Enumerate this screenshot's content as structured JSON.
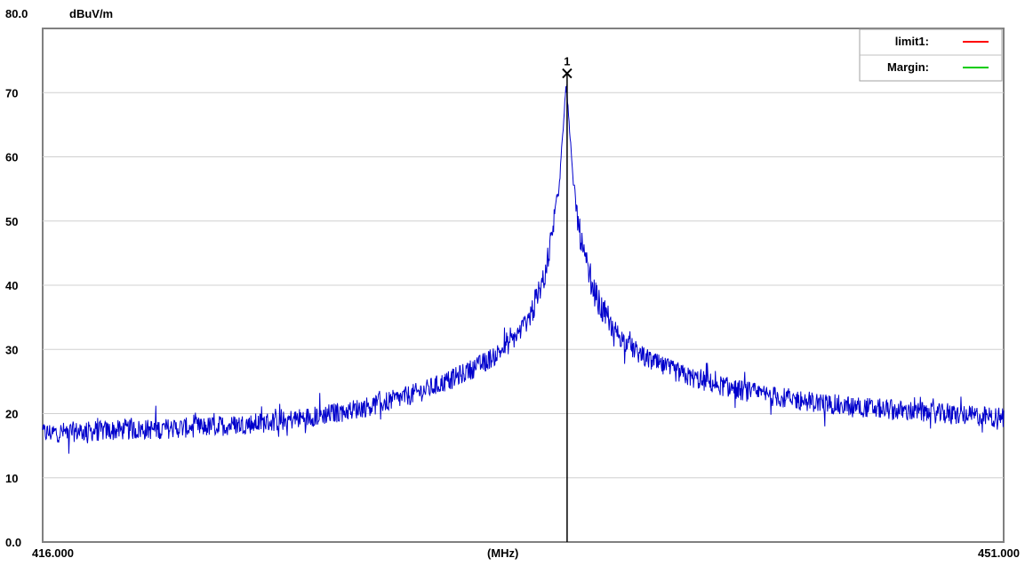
{
  "chart_data": {
    "type": "line",
    "ylabel": "dBuV/m",
    "xlabel": "(MHz)",
    "xlim": [
      416.0,
      451.0
    ],
    "ylim": [
      0.0,
      80.0
    ],
    "x_tick_labels": [
      "416.000",
      "451.000"
    ],
    "y_ticks": [
      {
        "value": 0,
        "label": "0.0"
      },
      {
        "value": 10,
        "label": "10"
      },
      {
        "value": 20,
        "label": "20"
      },
      {
        "value": 30,
        "label": "30"
      },
      {
        "value": 40,
        "label": "40"
      },
      {
        "value": 50,
        "label": "50"
      },
      {
        "value": 60,
        "label": "60"
      },
      {
        "value": 70,
        "label": "70"
      },
      {
        "value": 80,
        "label": "80.0"
      }
    ],
    "grid": true,
    "legend": {
      "position": "top-right",
      "entries": [
        {
          "label": "limit1:",
          "color": "#ff0000"
        },
        {
          "label": "Margin:",
          "color": "#00cc00"
        }
      ]
    },
    "series": [
      {
        "color": "#0000cc",
        "points": [
          [
            416.0,
            16.8
          ],
          [
            417.0,
            17.0
          ],
          [
            418.0,
            17.1
          ],
          [
            419.0,
            17.3
          ],
          [
            420.0,
            17.4
          ],
          [
            421.0,
            17.6
          ],
          [
            422.0,
            17.8
          ],
          [
            423.0,
            18.1
          ],
          [
            424.0,
            18.4
          ],
          [
            425.0,
            18.9
          ],
          [
            426.0,
            19.5
          ],
          [
            427.0,
            20.2
          ],
          [
            428.0,
            21.1
          ],
          [
            429.0,
            22.2
          ],
          [
            430.0,
            23.6
          ],
          [
            431.0,
            25.4
          ],
          [
            432.0,
            27.6
          ],
          [
            432.5,
            29.0
          ],
          [
            433.0,
            30.8
          ],
          [
            433.3,
            32.2
          ],
          [
            433.6,
            34.0
          ],
          [
            433.9,
            36.5
          ],
          [
            434.2,
            40.0
          ],
          [
            434.4,
            44.0
          ],
          [
            434.6,
            49.0
          ],
          [
            434.8,
            56.0
          ],
          [
            434.95,
            64.0
          ],
          [
            435.05,
            71.0
          ],
          [
            435.15,
            67.0
          ],
          [
            435.3,
            57.0
          ],
          [
            435.5,
            49.5
          ],
          [
            435.7,
            44.5
          ],
          [
            436.0,
            39.8
          ],
          [
            436.3,
            36.5
          ],
          [
            436.7,
            33.6
          ],
          [
            437.2,
            31.0
          ],
          [
            437.8,
            28.9
          ],
          [
            438.5,
            27.3
          ],
          [
            439.5,
            25.6
          ],
          [
            440.5,
            24.4
          ],
          [
            441.5,
            23.4
          ],
          [
            442.5,
            22.6
          ],
          [
            443.5,
            22.0
          ],
          [
            444.5,
            21.4
          ],
          [
            445.5,
            21.0
          ],
          [
            446.5,
            20.6
          ],
          [
            447.5,
            20.2
          ],
          [
            448.5,
            19.9
          ],
          [
            449.5,
            19.6
          ],
          [
            451.0,
            19.2
          ]
        ]
      }
    ],
    "marker": {
      "label": "1",
      "x": 435.1,
      "y": 73.0
    }
  }
}
